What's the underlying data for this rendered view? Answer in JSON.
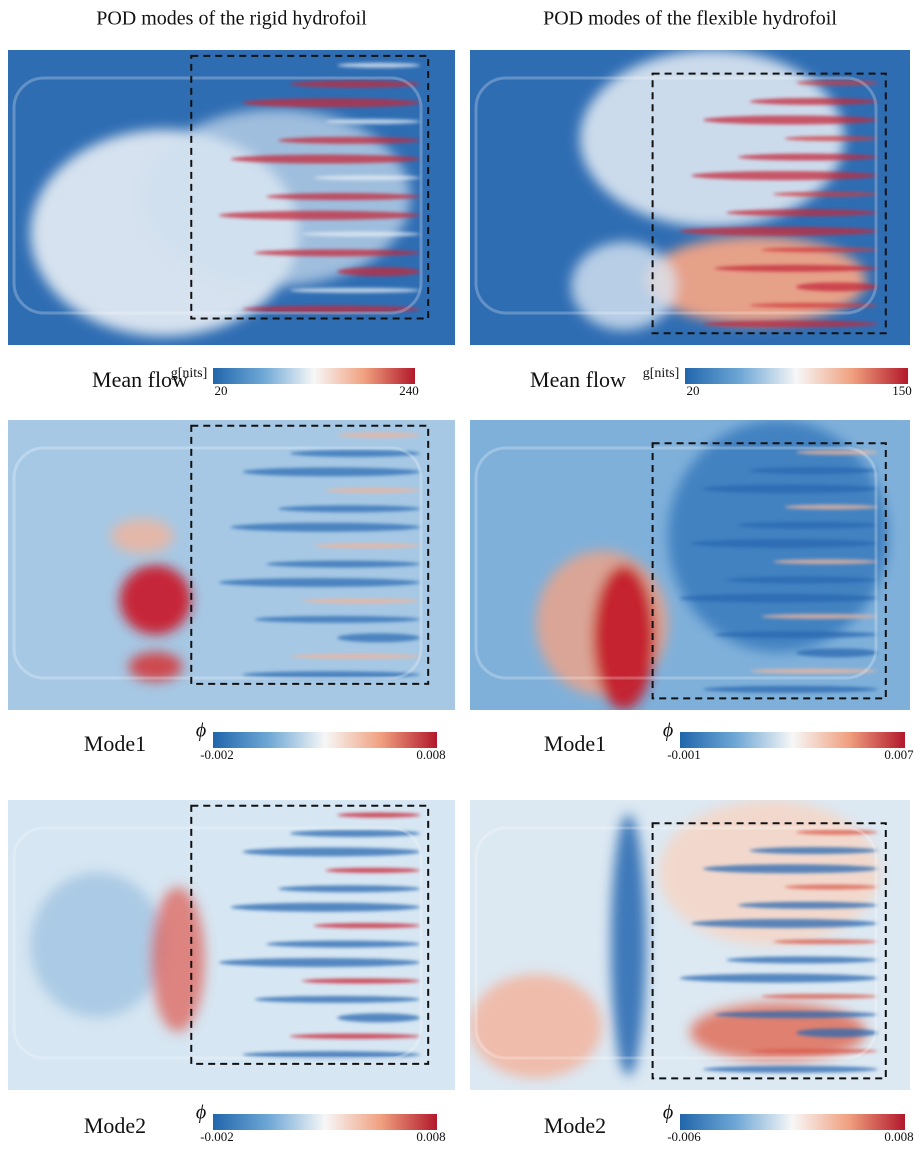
{
  "columns": [
    {
      "title": "POD modes of the rigid hydrofoil",
      "panels": [
        {
          "label": "Mean flow",
          "colorbar": {
            "unit": "g[nits]",
            "min": 20,
            "max": 240
          }
        },
        {
          "label": "Mode1",
          "colorbar": {
            "unit": "ϕ",
            "min": -0.002,
            "max": 0.008
          }
        },
        {
          "label": "Mode2",
          "colorbar": {
            "unit": "ϕ",
            "min": -0.002,
            "max": 0.008
          }
        }
      ]
    },
    {
      "title": "POD modes of the flexible hydrofoil",
      "panels": [
        {
          "label": "Mean flow",
          "colorbar": {
            "unit": "g[nits]",
            "min": 20,
            "max": 150
          }
        },
        {
          "label": "Mode1",
          "colorbar": {
            "unit": "ϕ",
            "min": -0.001,
            "max": 0.007
          }
        },
        {
          "label": "Mode2",
          "colorbar": {
            "unit": "ϕ",
            "min": -0.006,
            "max": 0.008
          }
        }
      ]
    }
  ]
}
